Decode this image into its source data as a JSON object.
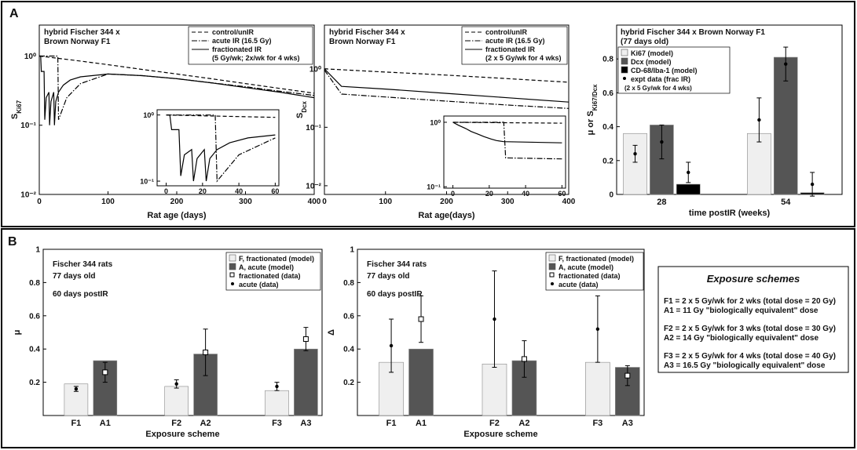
{
  "panels": [
    "A",
    "B"
  ],
  "chart_data": [
    {
      "type": "line",
      "log_y": true,
      "title": [
        "hybrid Fischer 344 x",
        "Brown Norway F1"
      ],
      "xlabel": "Rat age (days)",
      "ylabel": "S",
      "ylabel_sub": "Ki67",
      "xlim": [
        0,
        400
      ],
      "xticks": [
        0,
        100,
        200,
        300,
        400
      ],
      "ylim": [
        0.01,
        2.8
      ],
      "yticks": [
        {
          "value": 0.01,
          "label": "10⁻²"
        },
        {
          "value": 0.1,
          "label": "10⁻¹"
        },
        {
          "value": 1,
          "label": "10⁰"
        }
      ],
      "series": [
        {
          "name": "control/unIR",
          "dash": "dashed",
          "color": "#000000",
          "x": [
            0,
            50,
            100,
            150,
            200,
            250,
            300,
            350,
            400
          ],
          "values": [
            1.0,
            0.87,
            0.75,
            0.64,
            0.55,
            0.47,
            0.4,
            0.34,
            0.29
          ]
        },
        {
          "name": "acute IR (16.5 Gy)",
          "dash": "dashdot",
          "color": "#000000",
          "x": [
            0,
            27,
            28,
            40,
            60,
            100,
            150,
            200,
            250,
            300,
            350,
            400
          ],
          "values": [
            1.0,
            1.0,
            0.12,
            0.25,
            0.4,
            0.55,
            0.52,
            0.47,
            0.41,
            0.36,
            0.31,
            0.27
          ]
        },
        {
          "name": "fractionated IR",
          "note": "(5 Gy/wk; 2x/wk for 4 wks)",
          "dash": "solid",
          "color": "#000000",
          "x": [
            0,
            2,
            3,
            7,
            8,
            10,
            14,
            15,
            17,
            21,
            22,
            24,
            28,
            35,
            45,
            60,
            100,
            150,
            200,
            250,
            300,
            350,
            400
          ],
          "values": [
            1.0,
            1.0,
            0.6,
            0.6,
            0.12,
            0.25,
            0.3,
            0.1,
            0.22,
            0.3,
            0.1,
            0.22,
            0.3,
            0.38,
            0.45,
            0.5,
            0.55,
            0.52,
            0.47,
            0.41,
            0.35,
            0.3,
            0.25
          ]
        }
      ]
    },
    {
      "type": "line",
      "log_y": true,
      "xlim": [
        -5,
        62
      ],
      "xticks": [
        0,
        20,
        40,
        60
      ],
      "ylim": [
        0.085,
        1.2
      ],
      "yticks": [
        {
          "value": 0.1,
          "label": "10⁻¹"
        },
        {
          "value": 1,
          "label": "10⁰"
        }
      ],
      "series": [
        {
          "dash": "dashed",
          "color": "#000000",
          "x": [
            0,
            60
          ],
          "values": [
            1.0,
            0.92
          ]
        },
        {
          "dash": "dashdot",
          "color": "#000000",
          "x": [
            0,
            27,
            28,
            40,
            60
          ],
          "values": [
            1.0,
            1.0,
            0.1,
            0.25,
            0.45
          ]
        },
        {
          "dash": "solid",
          "color": "#000000",
          "x": [
            0,
            2,
            3,
            7,
            8,
            10,
            14,
            15,
            17,
            21,
            22,
            24,
            28,
            35,
            45,
            60
          ],
          "values": [
            1.0,
            1.0,
            0.6,
            0.6,
            0.12,
            0.25,
            0.3,
            0.1,
            0.22,
            0.3,
            0.1,
            0.22,
            0.3,
            0.38,
            0.45,
            0.5
          ]
        }
      ]
    },
    {
      "type": "line",
      "log_y": true,
      "title": [
        "hybrid Fischer 344 x",
        "Brown Norway F1"
      ],
      "xlabel": "Rat age(days)",
      "ylabel": "S",
      "ylabel_sub": "Dcx",
      "xlim": [
        0,
        400
      ],
      "xticks": [
        0,
        100,
        200,
        300,
        400
      ],
      "ylim": [
        0.0071,
        5.6
      ],
      "yticks": [
        {
          "value": 0.01,
          "label": "10⁻²"
        },
        {
          "value": 0.1,
          "label": "10⁻¹"
        },
        {
          "value": 1,
          "label": "10⁰"
        }
      ],
      "series": [
        {
          "name": "control/unIR",
          "dash": "dashed",
          "color": "#000000",
          "x": [
            0,
            100,
            200,
            300,
            400
          ],
          "values": [
            1.0,
            0.88,
            0.78,
            0.68,
            0.59
          ]
        },
        {
          "name": "acute IR (16.5 Gy)",
          "dash": "dashdot",
          "color": "#000000",
          "x": [
            0,
            28,
            100,
            200,
            300,
            400
          ],
          "values": [
            0.95,
            0.37,
            0.33,
            0.28,
            0.24,
            0.21
          ]
        },
        {
          "name": "fractionated IR",
          "note": "(2 x 5 Gy/wk for 4 wks)",
          "dash": "solid",
          "color": "#000000",
          "x": [
            0,
            28,
            100,
            200,
            300,
            400
          ],
          "values": [
            1.0,
            0.5,
            0.45,
            0.38,
            0.32,
            0.27
          ]
        }
      ]
    },
    {
      "type": "line",
      "log_y": true,
      "xlim": [
        -5,
        62
      ],
      "xticks": [
        0,
        20,
        40,
        60
      ],
      "ylim": [
        0.095,
        1.25
      ],
      "yticks": [
        {
          "value": 0.1,
          "label": "10⁻¹"
        },
        {
          "value": 1,
          "label": "10⁰"
        }
      ],
      "series": [
        {
          "dash": "dashed",
          "color": "#000000",
          "x": [
            0,
            60
          ],
          "values": [
            1.0,
            0.97
          ]
        },
        {
          "dash": "dashdot",
          "color": "#000000",
          "x": [
            0,
            28,
            29,
            60
          ],
          "values": [
            1.0,
            1.0,
            0.28,
            0.27
          ]
        },
        {
          "dash": "solid",
          "color": "#000000",
          "x": [
            0,
            3,
            7,
            10,
            14,
            17,
            21,
            24,
            28,
            60
          ],
          "values": [
            1.0,
            0.9,
            0.8,
            0.72,
            0.65,
            0.6,
            0.55,
            0.52,
            0.5,
            0.48
          ]
        }
      ]
    },
    {
      "type": "bar",
      "title": [
        "hybrid Fischer 344 x Brown Norway F1",
        "(77 days old)"
      ],
      "xlabel": "time postIR (weeks)",
      "ylabel": "μ or S",
      "ylabel_sub": "Ki67/Dcx",
      "categories": [
        "28",
        "54"
      ],
      "ylim": [
        0,
        1
      ],
      "yticks": [
        0,
        0.2,
        0.4,
        0.6,
        0.8
      ],
      "series": [
        {
          "name": "Ki67 (model)",
          "color": "#efefef",
          "values": [
            0.36,
            0.36
          ],
          "expt": [
            0.24,
            0.44
          ],
          "expt_err": [
            0.05,
            0.13
          ]
        },
        {
          "name": "Dcx (model)",
          "color": "#555555",
          "values": [
            0.41,
            0.81
          ],
          "expt": [
            0.31,
            0.77
          ],
          "expt_err": [
            0.1,
            0.1
          ]
        },
        {
          "name": "CD-68/Iba-1 (model)",
          "color": "#000000",
          "values": [
            0.06,
            0.01
          ],
          "expt": [
            0.13,
            0.06
          ],
          "expt_err": [
            0.06,
            0.07
          ]
        }
      ],
      "expt_name": "expt data (frac IR)",
      "expt_note": "(2 x 5 Gy/wk for 4 wks)"
    },
    {
      "type": "bar",
      "annotations": [
        "Fischer 344 rats",
        "77 days old",
        "60 days postIR"
      ],
      "xlabel": "Exposure scheme",
      "ylabel": "μ",
      "categories": [
        "F1",
        "A1",
        "F2",
        "A2",
        "F3",
        "A3"
      ],
      "ylim": [
        0,
        1
      ],
      "yticks": [
        0.2,
        0.4,
        0.6,
        0.8,
        1
      ],
      "series": [
        {
          "name": "F, fractionated (model)",
          "color": "#efefef",
          "values": [
            0.19,
            null,
            0.175,
            null,
            0.15,
            null
          ]
        },
        {
          "name": "A, acute (model)",
          "color": "#555555",
          "values": [
            null,
            0.33,
            null,
            0.37,
            null,
            0.4
          ]
        }
      ],
      "point_series": [
        {
          "name": "fractionated (data)",
          "marker": "square",
          "values": [
            null,
            0.26,
            null,
            0.38,
            null,
            0.46
          ],
          "errors": [
            null,
            0.06,
            null,
            0.14,
            null,
            0.07
          ]
        },
        {
          "name": "acute (data)",
          "marker": "dot",
          "values": [
            0.16,
            null,
            0.19,
            null,
            0.175,
            null
          ],
          "errors": [
            0.015,
            null,
            0.025,
            null,
            0.025,
            null
          ]
        }
      ]
    },
    {
      "type": "bar",
      "annotations": [
        "Fischer 344 rats",
        "77 days old",
        "60 days postIR"
      ],
      "xlabel": "Exposure scheme",
      "ylabel": "Δ",
      "categories": [
        "F1",
        "A1",
        "F2",
        "A2",
        "F3",
        "A3"
      ],
      "ylim": [
        0,
        1
      ],
      "yticks": [
        0.2,
        0.4,
        0.6,
        0.8,
        1
      ],
      "series": [
        {
          "name": "F, fractionated (model)",
          "color": "#efefef",
          "values": [
            0.32,
            null,
            0.31,
            null,
            0.32,
            null
          ]
        },
        {
          "name": "A, acute (model)",
          "color": "#555555",
          "values": [
            null,
            0.4,
            null,
            0.33,
            null,
            0.29
          ]
        }
      ],
      "point_series": [
        {
          "name": "fractionated (data)",
          "marker": "square",
          "values": [
            null,
            0.58,
            null,
            0.34,
            null,
            0.24
          ],
          "errors": [
            null,
            0.14,
            null,
            0.11,
            null,
            0.06
          ]
        },
        {
          "name": "acute (data)",
          "marker": "dot",
          "values": [
            0.42,
            null,
            0.58,
            null,
            0.52,
            null
          ],
          "errors": [
            0.16,
            null,
            0.29,
            null,
            0.2,
            null
          ]
        }
      ]
    }
  ],
  "exposure_schemes": {
    "title": "Exposure schemes",
    "groups": [
      [
        "F1 = 2 x 5 Gy/wk for 2 wks (total dose = 20 Gy)",
        "A1 = 11 Gy \"biologically equivalent\" dose"
      ],
      [
        "F2 = 2 x 5 Gy/wk for 3 wks (total dose = 30 Gy)",
        "A2 = 14 Gy \"biologically equivalent\" dose"
      ],
      [
        "F3 = 2 x 5 Gy/wk for 4 wks (total dose = 40 Gy)",
        "A3 = 16.5 Gy \"biologically equivalent\" dose"
      ]
    ]
  }
}
